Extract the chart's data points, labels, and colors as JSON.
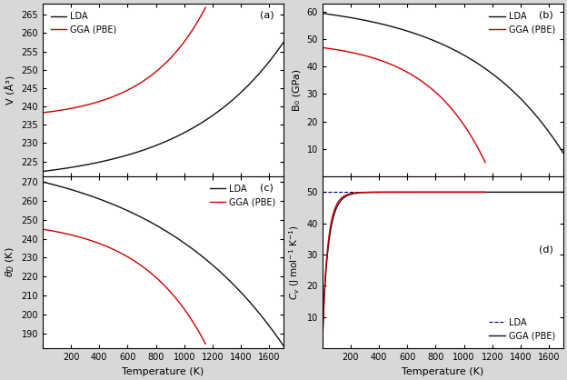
{
  "fig_width": 6.24,
  "fig_height": 4.18,
  "dpi": 100,
  "bg_color": "#d8d8d8",
  "panel_bg": "#ffffff",
  "subplot_labels": [
    "(a)",
    "(b)",
    "(c)",
    "(d)"
  ],
  "T_LDA_max": 1700,
  "T_GGA_max": 1150,
  "T_min": 0,
  "panel_a": {
    "ylabel": "V (Å³)",
    "ylim": [
      221,
      268
    ],
    "yticks": [
      225,
      230,
      235,
      240,
      245,
      250,
      255,
      260,
      265
    ],
    "LDA_V0": 222.3,
    "LDA_Vmax": 257.5,
    "LDA_exp": 2.5,
    "GGA_V0": 238.3,
    "GGA_Vmax": 267.0,
    "GGA_exp": 2.8
  },
  "panel_b": {
    "ylabel": "B₀ (GPa)",
    "ylim": [
      0,
      63
    ],
    "yticks": [
      10,
      20,
      30,
      40,
      50,
      60
    ],
    "LDA_B0": 59.5,
    "LDA_Bmin": 8.5,
    "LDA_exp": 2.5,
    "GGA_B0": 47.0,
    "GGA_Bmin": 5.0,
    "GGA_exp": 2.8
  },
  "panel_c": {
    "ylabel": "θ_D (K)",
    "ylim": [
      182,
      273
    ],
    "yticks": [
      190,
      200,
      210,
      220,
      230,
      240,
      250,
      260,
      270
    ],
    "LDA_th0": 270.0,
    "LDA_thmin": 183.5,
    "LDA_exp": 1.8,
    "GGA_th0": 245.0,
    "GGA_thmin": 184.5,
    "GGA_exp": 2.5
  },
  "panel_d": {
    "ylabel": "C_v (J mol⁻¹ K⁻¹)",
    "ylim": [
      0,
      55
    ],
    "yticks": [
      10,
      20,
      30,
      40,
      50
    ],
    "dulong_petit": 49.9,
    "LDA_sat": 49.9,
    "GGA_sat": 49.9,
    "LDA_TD": 160,
    "GGA_TD": 145
  },
  "lda_color": "#111111",
  "gga_color": "#cc0000",
  "lda_label": "LDA",
  "gga_label": "GGA (PBE)",
  "xlabel": "Temperature (K)",
  "xticks": [
    200,
    400,
    600,
    800,
    1000,
    1200,
    1400,
    1600
  ],
  "xlim": [
    0,
    1700
  ]
}
